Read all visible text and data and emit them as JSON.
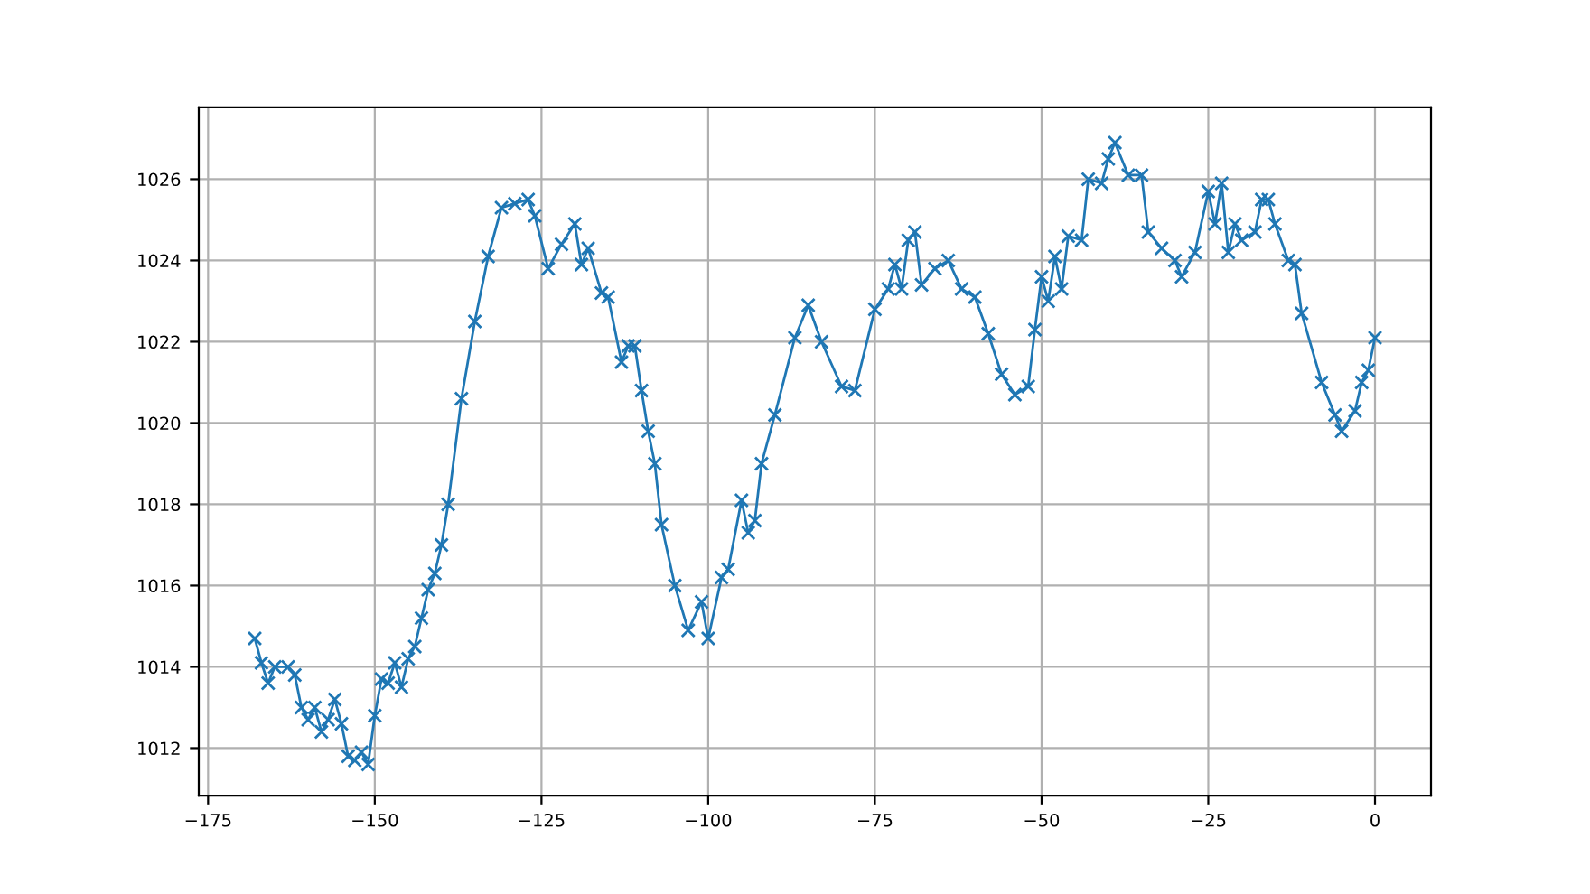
{
  "chart_data": {
    "type": "line",
    "marker": "cross",
    "grid": true,
    "xlim": [
      -176.4,
      8.4
    ],
    "ylim": [
      1010.83,
      1027.77
    ],
    "xticks": [
      {
        "value": -175,
        "label": "−175"
      },
      {
        "value": -150,
        "label": "−150"
      },
      {
        "value": -125,
        "label": "−125"
      },
      {
        "value": -100,
        "label": "−100"
      },
      {
        "value": -75,
        "label": "−75"
      },
      {
        "value": -50,
        "label": "−50"
      },
      {
        "value": -25,
        "label": "−25"
      },
      0
    ],
    "yticks": [
      1012,
      1014,
      1016,
      1018,
      1020,
      1022,
      1024,
      1026
    ],
    "x": [
      -168,
      -167,
      -166,
      -165,
      -163,
      -162,
      -161,
      -160,
      -159,
      -158,
      -157,
      -156,
      -155,
      -154,
      -153,
      -152,
      -151,
      -150,
      -149,
      -148,
      -147,
      -146,
      -145,
      -144,
      -143,
      -142,
      -141,
      -140,
      -139,
      -137,
      -135,
      -133,
      -131,
      -129,
      -127,
      -126,
      -124,
      -122,
      -120,
      -119,
      -118,
      -116,
      -115,
      -113,
      -112,
      -111,
      -110,
      -109,
      -108,
      -107,
      -105,
      -103,
      -101,
      -100,
      -98,
      -97,
      -95,
      -94,
      -93,
      -92,
      -90,
      -87,
      -85,
      -83,
      -80,
      -78,
      -75,
      -73,
      -72,
      -71,
      -70,
      -69,
      -68,
      -66,
      -64,
      -62,
      -60,
      -58,
      -56,
      -54,
      -52,
      -51,
      -50,
      -49,
      -48,
      -47,
      -46,
      -44,
      -43,
      -41,
      -40,
      -39,
      -37,
      -35,
      -34,
      -32,
      -30,
      -29,
      -27,
      -25,
      -24,
      -23,
      -22,
      -21,
      -20,
      -18,
      -17,
      -16,
      -15,
      -13,
      -12,
      -11,
      -8,
      -6,
      -5,
      -3,
      -2,
      -1,
      0
    ],
    "series": [
      {
        "color": "#1f77b4",
        "values": [
          1014.7,
          1014.1,
          1013.6,
          1014.0,
          1014.0,
          1013.8,
          1013.0,
          1012.7,
          1013.0,
          1012.4,
          1012.7,
          1013.2,
          1012.6,
          1011.8,
          1011.7,
          1011.9,
          1011.6,
          1012.8,
          1013.7,
          1013.6,
          1014.1,
          1013.5,
          1014.2,
          1014.5,
          1015.2,
          1015.9,
          1016.3,
          1017.0,
          1018.0,
          1020.6,
          1022.5,
          1024.1,
          1025.3,
          1025.4,
          1025.5,
          1025.1,
          1023.8,
          1024.4,
          1024.9,
          1023.9,
          1024.3,
          1023.2,
          1023.1,
          1021.5,
          1021.9,
          1021.9,
          1020.8,
          1019.8,
          1019.0,
          1017.5,
          1016.0,
          1014.9,
          1015.6,
          1014.7,
          1016.2,
          1016.4,
          1018.1,
          1017.3,
          1017.6,
          1019.0,
          1020.2,
          1022.1,
          1022.9,
          1022.0,
          1020.9,
          1020.8,
          1022.8,
          1023.3,
          1023.9,
          1023.3,
          1024.5,
          1024.7,
          1023.4,
          1023.8,
          1024.0,
          1023.3,
          1023.1,
          1022.2,
          1021.2,
          1020.7,
          1020.9,
          1022.3,
          1023.6,
          1023.0,
          1024.1,
          1023.3,
          1024.6,
          1024.5,
          1026.0,
          1025.9,
          1026.5,
          1026.9,
          1026.1,
          1026.1,
          1024.7,
          1024.3,
          1024.0,
          1023.6,
          1024.2,
          1025.7,
          1024.9,
          1025.9,
          1024.2,
          1024.9,
          1024.5,
          1024.7,
          1025.5,
          1025.5,
          1024.9,
          1024.0,
          1023.9,
          1022.7,
          1021.0,
          1020.2,
          1019.8,
          1020.3,
          1021.0,
          1021.3,
          1022.1
        ]
      }
    ]
  }
}
